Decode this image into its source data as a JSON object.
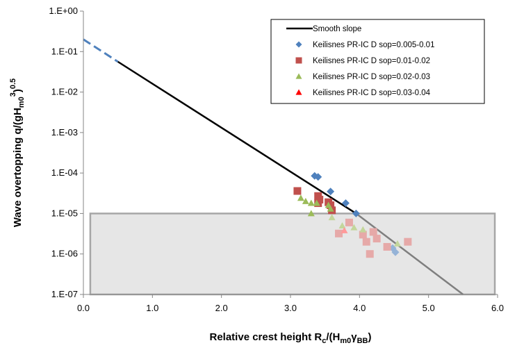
{
  "chart_data": {
    "type": "scatter",
    "xlabel": {
      "main": "Relative crest height R",
      "sub1": "c",
      "mid": "/(H",
      "sub2": "m0",
      "mid2": "γ",
      "sub3": "BB",
      "end": ")"
    },
    "ylabel": {
      "main": "Wave overtopping q/(gH",
      "sub": "m0",
      "sup": "3",
      "mid": ")",
      "sup2": "0.5"
    },
    "xlim": [
      0,
      6
    ],
    "ylim_log10": [
      -7,
      0
    ],
    "x_ticks": [
      "0.0",
      "1.0",
      "2.0",
      "3.0",
      "4.0",
      "5.0",
      "6.0"
    ],
    "y_ticks": [
      "1.E-07",
      "1.E-06",
      "1.E-05",
      "1.E-04",
      "1.E-03",
      "1.E-02",
      "1.E-01",
      "1.E+00"
    ],
    "y_scale": "log",
    "grid": false,
    "legend_position": "top-right",
    "shaded_region": {
      "x": [
        0.1,
        5.96
      ],
      "y": [
        1e-07,
        1e-05
      ],
      "fill": "#e6e6e6",
      "stroke": "#a6a6a6"
    },
    "line": {
      "name": "Smooth slope",
      "color": "#000000",
      "points": [
        [
          0.5,
          0.0562
        ],
        [
          5.0,
          1e-06
        ]
      ],
      "dashed_extension": {
        "color": "#4f81bd",
        "points": [
          [
            0.0,
            0.2
          ],
          [
            0.5,
            0.0562
          ]
        ]
      },
      "faded_extension": {
        "color": "#7f7f7f",
        "points": [
          [
            3.95,
            1e-05
          ],
          [
            5.5,
            1e-07
          ]
        ]
      }
    },
    "series": [
      {
        "name": "Keilisnes PR-IC D sop=0.005-0.01",
        "marker": "diamond",
        "color": "#4f81bd",
        "faded_color": "#95b3d7",
        "points": [
          [
            3.35,
            8.5e-05
          ],
          [
            3.4,
            8e-05
          ],
          [
            3.58,
            3.5e-05
          ],
          [
            3.8,
            1.8e-05
          ],
          [
            3.95,
            1e-05
          ],
          [
            4.48,
            1.4e-06
          ],
          [
            4.52,
            1.1e-06
          ]
        ]
      },
      {
        "name": "Keilisnes PR-IC D sop=0.01-0.02",
        "marker": "square",
        "color": "#c0504d",
        "faded_color": "#e6a9a8",
        "points": [
          [
            3.1,
            3.6e-05
          ],
          [
            3.4,
            2.7e-05
          ],
          [
            3.42,
            2.2e-05
          ],
          [
            3.4,
            1.8e-05
          ],
          [
            3.55,
            1.9e-05
          ],
          [
            3.58,
            1.6e-05
          ],
          [
            3.6,
            1.2e-05
          ],
          [
            3.7,
            3.2e-06
          ],
          [
            3.85,
            6e-06
          ],
          [
            4.05,
            3e-06
          ],
          [
            4.1,
            2e-06
          ],
          [
            4.15,
            1e-06
          ],
          [
            4.2,
            3.5e-06
          ],
          [
            4.25,
            2.4e-06
          ],
          [
            4.4,
            1.5e-06
          ],
          [
            4.7,
            2e-06
          ]
        ]
      },
      {
        "name": "Keilisnes PR-IC D sop=0.02-0.03",
        "marker": "triangle",
        "color": "#9bbb59",
        "faded_color": "#c3d69b",
        "points": [
          [
            3.15,
            2.4e-05
          ],
          [
            3.22,
            2e-05
          ],
          [
            3.3,
            1.8e-05
          ],
          [
            3.3,
            1e-05
          ],
          [
            3.38,
            1.8e-05
          ],
          [
            3.55,
            1.6e-05
          ],
          [
            3.58,
            1.3e-05
          ],
          [
            3.6,
            8e-06
          ],
          [
            3.75,
            5e-06
          ],
          [
            3.92,
            4.5e-06
          ],
          [
            4.05,
            4e-06
          ],
          [
            4.55,
            1.8e-06
          ]
        ]
      },
      {
        "name": "Keilisnes PR-IC D sop=0.03-0.04",
        "marker": "triangle",
        "color": "#ff0000",
        "faded_color": "#ff9999",
        "points": [
          [
            3.78,
            3.8e-06
          ]
        ]
      }
    ]
  }
}
